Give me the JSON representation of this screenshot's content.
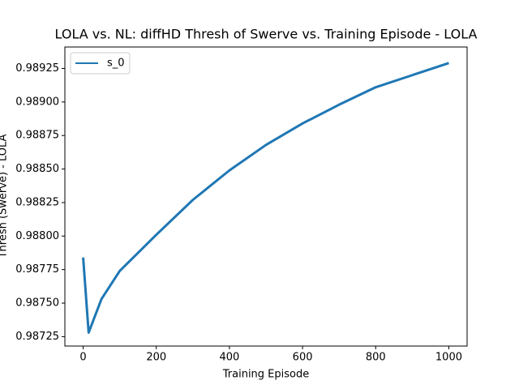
{
  "chart_data": {
    "type": "line",
    "title": "LOLA vs. NL: diffHD Thresh of Swerve vs. Training Episode - LOLA",
    "x_label": "Training Episode",
    "y_label": "Thresh (Swerve) - LOLA",
    "x": [
      0,
      15,
      50,
      100,
      200,
      300,
      400,
      500,
      600,
      700,
      800,
      900,
      1000
    ],
    "series": [
      {
        "name": "s_0",
        "color": "#1f77b4",
        "values": [
          0.98784,
          0.98728,
          0.98753,
          0.98774,
          0.98801,
          0.98827,
          0.98849,
          0.98868,
          0.98884,
          0.98898,
          0.98911,
          0.9892,
          0.98929
        ]
      }
    ],
    "xlim": [
      -50,
      1050
    ],
    "xticks": [
      0,
      200,
      400,
      600,
      800,
      1000
    ],
    "ylim": [
      0.98718,
      0.98941
    ],
    "yticks": [
      0.98725,
      {
        "value": 0.9875,
        "label": "0.98750"
      },
      0.98775,
      {
        "value": 0.988,
        "label": "0.98800"
      },
      0.98825,
      {
        "value": 0.9885,
        "label": "0.98850"
      },
      0.98875,
      {
        "value": 0.989,
        "label": "0.98900"
      },
      0.98925
    ],
    "legend": "upper left"
  }
}
